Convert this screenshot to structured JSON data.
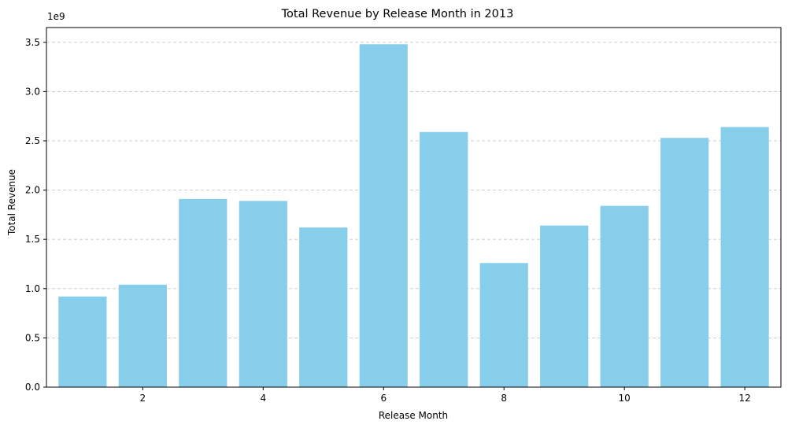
{
  "chart_data": {
    "type": "bar",
    "title": "Total Revenue by Release Month in 2013",
    "xlabel": "Release Month",
    "ylabel": "Total Revenue",
    "y_offset_label": "1e9",
    "categories": [
      1,
      2,
      3,
      4,
      5,
      6,
      7,
      8,
      9,
      10,
      11,
      12
    ],
    "values": [
      920000000,
      1040000000,
      1910000000,
      1890000000,
      1620000000,
      3480000000,
      2590000000,
      1260000000,
      1640000000,
      1840000000,
      2530000000,
      2640000000
    ],
    "xlim": [
      0.4,
      12.6
    ],
    "ylim": [
      0,
      3650000000
    ],
    "x_ticks": [
      2,
      4,
      6,
      8,
      10,
      12
    ],
    "x_tick_labels": [
      "2",
      "4",
      "6",
      "8",
      "10",
      "12"
    ],
    "y_ticks": [
      0,
      500000000,
      1000000000,
      1500000000,
      2000000000,
      2500000000,
      3000000000,
      3500000000
    ],
    "y_tick_labels": [
      "0.0",
      "0.5",
      "1.0",
      "1.5",
      "2.0",
      "2.5",
      "3.0",
      "3.5"
    ],
    "grid": "y-dashed",
    "bar_color": "#87CEEB",
    "grid_color": "#c8c8c8"
  }
}
